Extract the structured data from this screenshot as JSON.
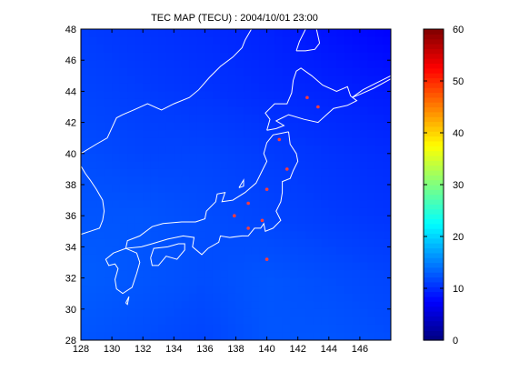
{
  "chart_data": {
    "type": "heatmap",
    "title": "TEC MAP (TECU) : 2004/10/01 23:00",
    "xlabel": "",
    "ylabel": "",
    "xlim": [
      128,
      148
    ],
    "ylim": [
      28,
      48
    ],
    "x_ticks": [
      128,
      130,
      132,
      134,
      136,
      138,
      140,
      142,
      144,
      146
    ],
    "y_ticks": [
      28,
      30,
      32,
      34,
      36,
      38,
      40,
      42,
      44,
      46,
      48
    ],
    "grid": false,
    "value_range": [
      0,
      60
    ],
    "field": {
      "longitudes": [
        128,
        132,
        136,
        140,
        144,
        148
      ],
      "latitudes": [
        48,
        44,
        40,
        36,
        32,
        28
      ],
      "values": [
        [
          11.0,
          10.5,
          10.0,
          9.5,
          8.5,
          7.5
        ],
        [
          11.5,
          11.0,
          10.5,
          10.0,
          9.5,
          9.0
        ],
        [
          12.0,
          11.5,
          11.5,
          11.0,
          10.5,
          10.0
        ],
        [
          12.5,
          12.5,
          12.0,
          11.5,
          11.0,
          10.5
        ],
        [
          13.0,
          12.5,
          12.0,
          12.5,
          12.0,
          11.5
        ],
        [
          12.5,
          12.0,
          11.5,
          12.5,
          12.5,
          12.0
        ]
      ]
    },
    "stations": [
      {
        "lon": 142.6,
        "lat": 43.6
      },
      {
        "lon": 143.3,
        "lat": 43.0
      },
      {
        "lon": 141.3,
        "lat": 39.0
      },
      {
        "lon": 140.8,
        "lat": 40.9
      },
      {
        "lon": 140.0,
        "lat": 37.7
      },
      {
        "lon": 138.8,
        "lat": 36.8
      },
      {
        "lon": 137.9,
        "lat": 36.0
      },
      {
        "lon": 139.7,
        "lat": 35.7
      },
      {
        "lon": 138.8,
        "lat": 35.2
      },
      {
        "lon": 140.0,
        "lat": 33.2
      }
    ],
    "colorbar": {
      "min": 0,
      "max": 60,
      "ticks": [
        0,
        10,
        20,
        30,
        40,
        50,
        60
      ],
      "colormap": "jet"
    },
    "coastline_color": "#ffffff",
    "station_color": "#ff3b3b"
  }
}
